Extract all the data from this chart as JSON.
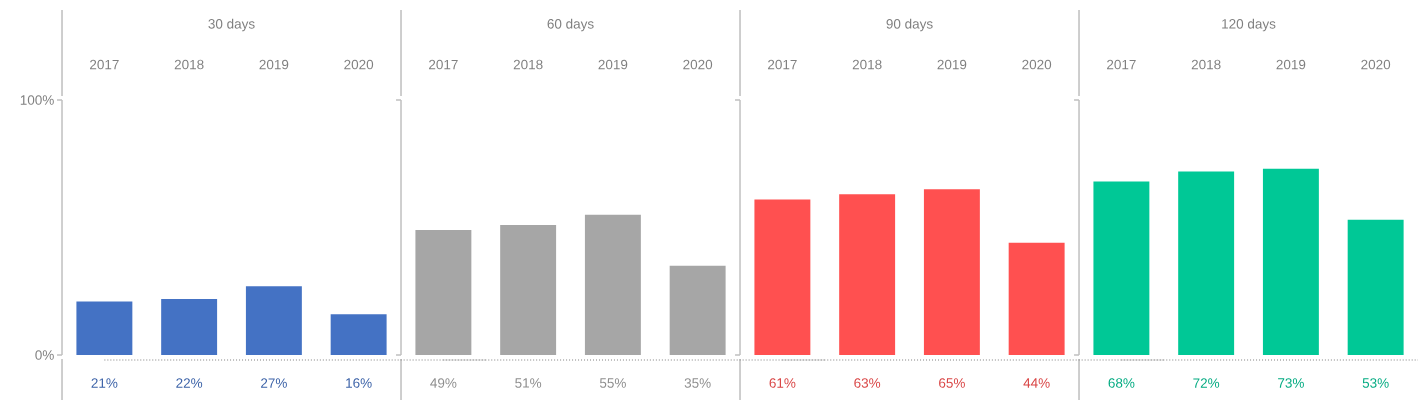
{
  "chart_data": [
    {
      "type": "bar",
      "title": "30 days",
      "categories": [
        "2017",
        "2018",
        "2019",
        "2020"
      ],
      "values": [
        21,
        22,
        27,
        16
      ],
      "value_labels": [
        "21%",
        "22%",
        "27%",
        "16%"
      ],
      "color": "#4472c4",
      "ylim": [
        0,
        100
      ],
      "yticks": [
        {
          "value": 0,
          "label": "0%"
        },
        {
          "value": 100,
          "label": "100%"
        }
      ]
    },
    {
      "type": "bar",
      "title": "60 days",
      "categories": [
        "2017",
        "2018",
        "2019",
        "2020"
      ],
      "values": [
        49,
        51,
        55,
        35
      ],
      "value_labels": [
        "49%",
        "51%",
        "55%",
        "35%"
      ],
      "color": "#a6a6a6",
      "ylim": [
        0,
        100
      ]
    },
    {
      "type": "bar",
      "title": "90 days",
      "categories": [
        "2017",
        "2018",
        "2019",
        "2020"
      ],
      "values": [
        61,
        63,
        65,
        44
      ],
      "value_labels": [
        "61%",
        "63%",
        "65%",
        "44%"
      ],
      "color": "#ff5050",
      "ylim": [
        0,
        100
      ]
    },
    {
      "type": "bar",
      "title": "120 days",
      "categories": [
        "2017",
        "2018",
        "2019",
        "2020"
      ],
      "values": [
        68,
        72,
        73,
        53
      ],
      "value_labels": [
        "68%",
        "72%",
        "73%",
        "53%"
      ],
      "color": "#00c896",
      "ylim": [
        0,
        100
      ]
    }
  ]
}
